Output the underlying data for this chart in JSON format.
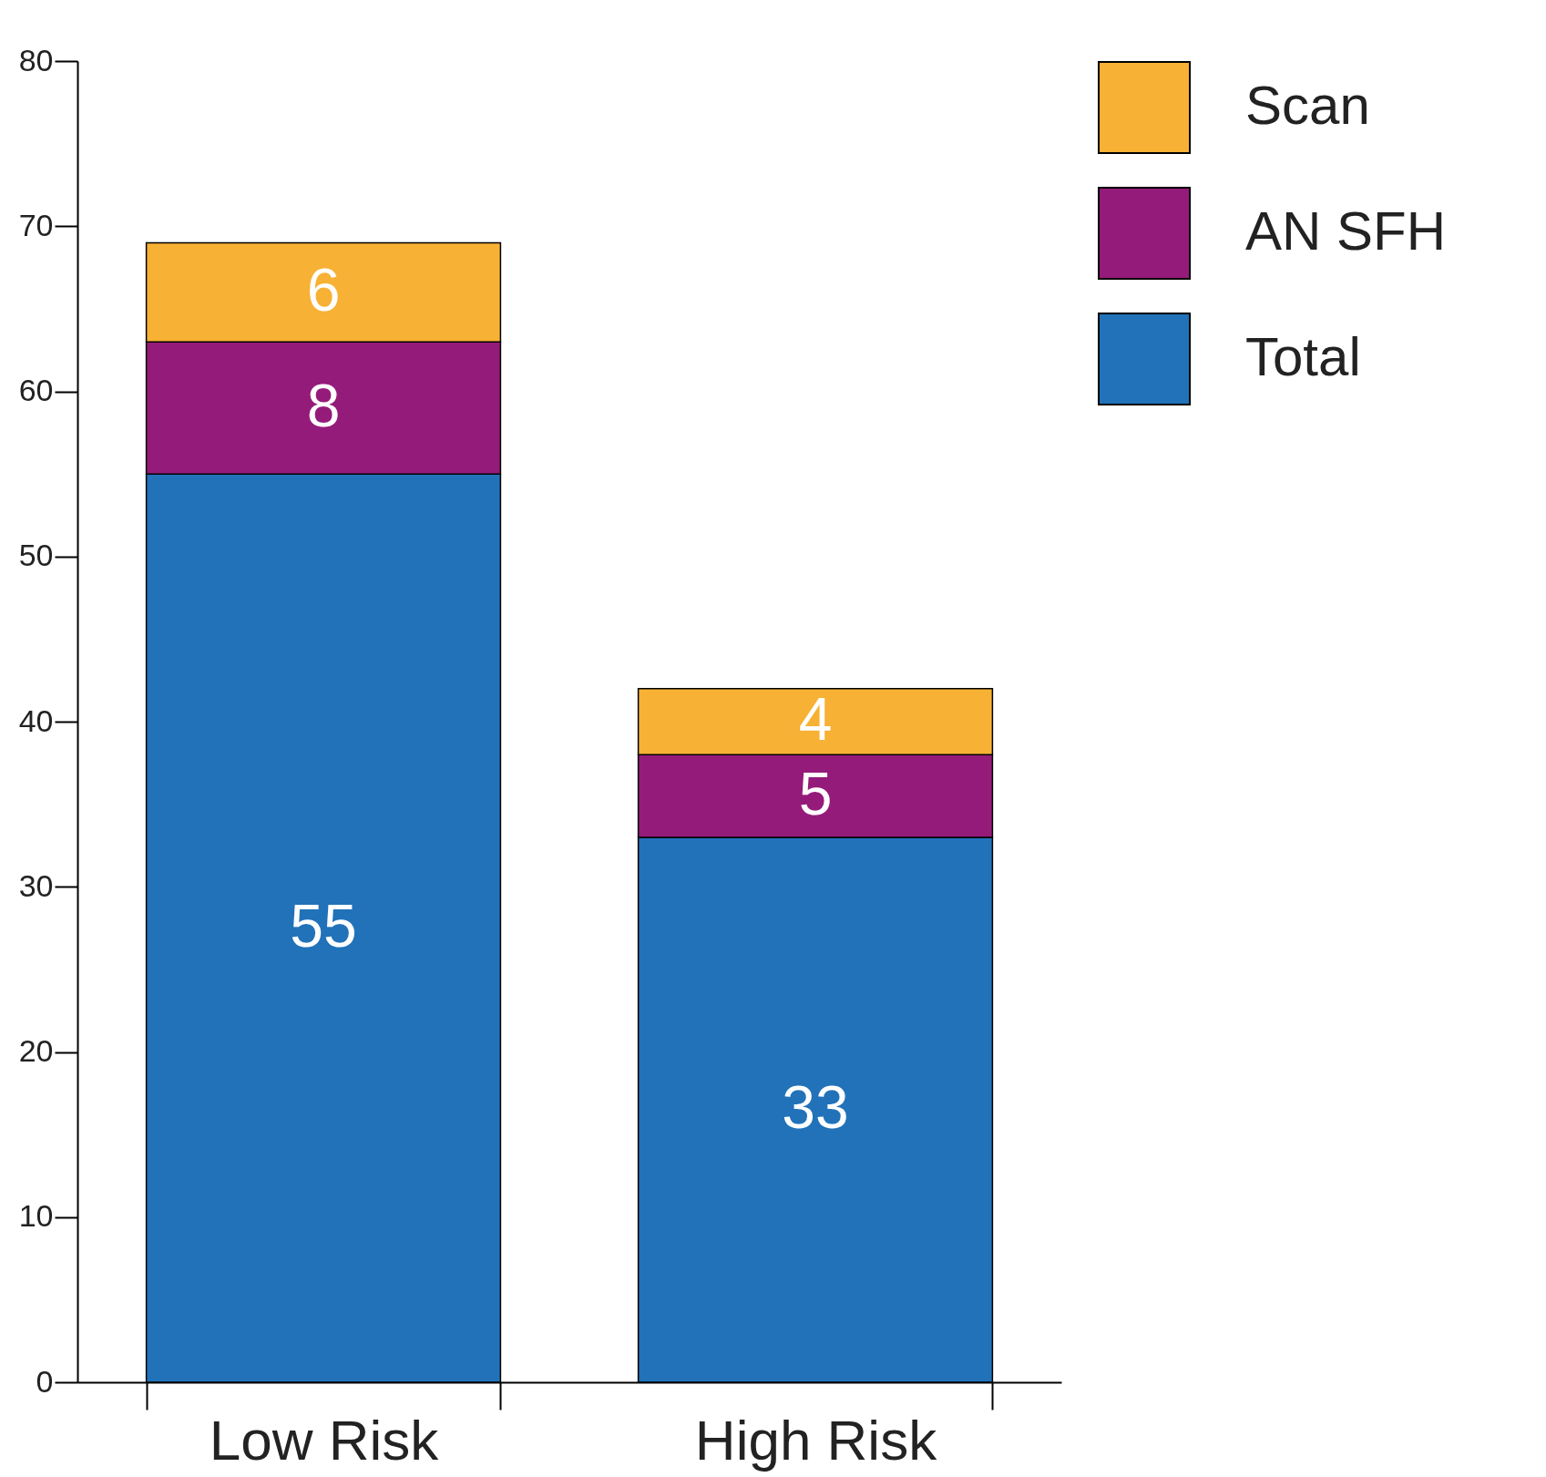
{
  "chart_data": {
    "type": "bar",
    "stacked": true,
    "categories": [
      "Low Risk",
      "High Risk"
    ],
    "series": [
      {
        "name": "Total",
        "color": "#2172b9",
        "values": [
          55,
          33
        ]
      },
      {
        "name": "AN SFH",
        "color": "#951b7b",
        "values": [
          8,
          5
        ]
      },
      {
        "name": "Scan",
        "color": "#f7b134",
        "values": [
          6,
          4
        ]
      }
    ],
    "ylim": [
      0,
      80
    ],
    "yticks": [
      0,
      10,
      20,
      30,
      40,
      50,
      60,
      70,
      80
    ],
    "data_labels": true,
    "legend": "top right",
    "grid": false
  }
}
